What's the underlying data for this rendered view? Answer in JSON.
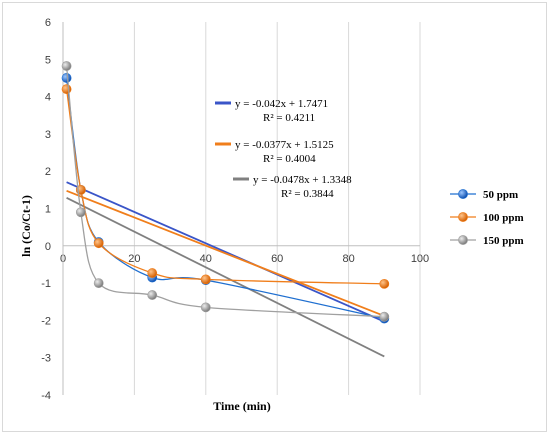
{
  "chart_data": {
    "type": "scatter",
    "title": "",
    "xlabel": "Time (min)",
    "ylabel": "ln (Co/Ct-1)",
    "xlim": [
      0,
      100
    ],
    "ylim": [
      -4,
      6
    ],
    "xticks": [
      "0",
      "20",
      "40",
      "60",
      "80",
      "100"
    ],
    "yticks": [
      "6",
      "5",
      "4",
      "3",
      "2",
      "1",
      "0",
      "-1",
      "-2",
      "-3",
      "-4"
    ],
    "grid": "vertical",
    "legend_position": "right",
    "series": [
      {
        "name": "50 ppm",
        "color": "#1f6fd0",
        "points": [
          [
            1,
            4.5
          ],
          [
            5,
            1.5
          ],
          [
            10,
            0.1
          ],
          [
            25,
            -0.85
          ],
          [
            40,
            -0.92
          ],
          [
            90,
            -1.95
          ]
        ],
        "trendline": {
          "slope": -0.042,
          "intercept": 1.7471,
          "x_range": [
            1,
            90
          ],
          "color": "#3a55c8",
          "equation": "y = -0.042x + 1.7471",
          "r2": "R² = 0.4211"
        }
      },
      {
        "name": "100 ppm",
        "color": "#f07e1b",
        "points": [
          [
            1,
            4.2
          ],
          [
            5,
            1.5
          ],
          [
            10,
            0.07
          ],
          [
            25,
            -0.73
          ],
          [
            40,
            -0.9
          ],
          [
            90,
            -1.02
          ]
        ],
        "trendline": {
          "slope": -0.0377,
          "intercept": 1.5125,
          "x_range": [
            1,
            90
          ],
          "color": "#f07e1b",
          "equation": "y = -0.0377x + 1.5125",
          "r2": "R² = 0.4004"
        }
      },
      {
        "name": "150 ppm",
        "color": "#a0a0a0",
        "points": [
          [
            1,
            4.82
          ],
          [
            5,
            0.9
          ],
          [
            10,
            -1.0
          ],
          [
            25,
            -1.32
          ],
          [
            40,
            -1.65
          ],
          [
            90,
            -1.9
          ]
        ],
        "trendline": {
          "slope": -0.0478,
          "intercept": 1.3348,
          "x_range": [
            1,
            90
          ],
          "color": "#808080",
          "equation": "y = -0.0478x + 1.3348",
          "r2": "R² = 0.3844"
        }
      }
    ]
  }
}
